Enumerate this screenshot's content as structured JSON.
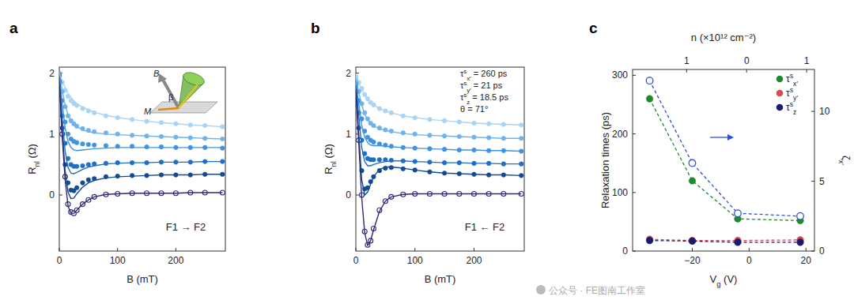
{
  "chart_data": [
    {
      "type": "scatter",
      "panel_label": "a",
      "x_label": "B (mT)",
      "y_label": "Rnl (Ω)",
      "xlim": [
        0,
        285
      ],
      "ylim": [
        -0.92,
        2.1
      ],
      "xticks": [
        0,
        100,
        200
      ],
      "yticks": [
        0,
        1,
        2
      ],
      "annotation": "F1 → F2",
      "inset_labels": [
        "B",
        "β",
        "M"
      ],
      "x": [
        0,
        5,
        10,
        15,
        20,
        25,
        30,
        40,
        50,
        60,
        80,
        100,
        125,
        150,
        175,
        200,
        225,
        250,
        280
      ],
      "series": [
        {
          "color": "#a9d4f5",
          "marker": "circle",
          "values": [
            2.0,
            1.85,
            1.72,
            1.62,
            1.55,
            1.5,
            1.47,
            1.42,
            1.38,
            1.35,
            1.3,
            1.27,
            1.24,
            1.21,
            1.19,
            1.17,
            1.15,
            1.14,
            1.12
          ],
          "fit": [
            2.0,
            1.88,
            1.76,
            1.67,
            1.6,
            1.55,
            1.5,
            1.44,
            1.4,
            1.36,
            1.31,
            1.27,
            1.24,
            1.21,
            1.19,
            1.17,
            1.15,
            1.14,
            1.12
          ]
        },
        {
          "color": "#6fb3ec",
          "marker": "circle",
          "values": [
            2.0,
            1.7,
            1.45,
            1.3,
            1.22,
            1.17,
            1.13,
            1.09,
            1.06,
            1.04,
            1.02,
            1.0,
            0.98,
            0.97,
            0.96,
            0.95,
            0.94,
            0.93,
            0.92
          ],
          "fit": [
            2.0,
            1.72,
            1.48,
            1.32,
            1.22,
            1.16,
            1.12,
            1.07,
            1.04,
            1.02,
            1.0,
            0.99,
            0.98,
            0.97,
            0.96,
            0.95,
            0.94,
            0.93,
            0.92
          ]
        },
        {
          "color": "#3f93e0",
          "marker": "circle",
          "values": [
            1.97,
            1.55,
            1.2,
            1.0,
            0.92,
            0.88,
            0.86,
            0.84,
            0.83,
            0.82,
            0.81,
            0.8,
            0.8,
            0.79,
            0.79,
            0.78,
            0.78,
            0.78,
            0.77
          ],
          "fit": [
            1.97,
            1.5,
            1.1,
            0.88,
            0.78,
            0.74,
            0.73,
            0.74,
            0.75,
            0.76,
            0.77,
            0.78,
            0.78,
            0.78,
            0.78,
            0.78,
            0.78,
            0.78,
            0.78
          ]
        },
        {
          "color": "#1f6fc4",
          "marker": "circle",
          "values": [
            1.95,
            1.3,
            0.85,
            0.6,
            0.5,
            0.47,
            0.47,
            0.48,
            0.5,
            0.51,
            0.52,
            0.53,
            0.53,
            0.53,
            0.54,
            0.54,
            0.54,
            0.55,
            0.55
          ],
          "fit": [
            1.95,
            1.25,
            0.72,
            0.45,
            0.36,
            0.35,
            0.37,
            0.42,
            0.46,
            0.48,
            0.51,
            0.52,
            0.53,
            0.53,
            0.54,
            0.54,
            0.54,
            0.55,
            0.55
          ]
        },
        {
          "color": "#144a94",
          "marker": "circle",
          "values": [
            1.9,
            1.1,
            0.5,
            0.2,
            0.08,
            0.07,
            0.12,
            0.2,
            0.25,
            0.27,
            0.3,
            0.31,
            0.32,
            0.32,
            0.33,
            0.33,
            0.33,
            0.34,
            0.34
          ],
          "fit": [
            1.9,
            1.05,
            0.4,
            0.05,
            -0.06,
            -0.05,
            0.02,
            0.13,
            0.2,
            0.24,
            0.28,
            0.3,
            0.31,
            0.32,
            0.33,
            0.33,
            0.33,
            0.34,
            0.34
          ]
        },
        {
          "color": "#2e2a7a",
          "marker": "open_circle",
          "values": [
            1.85,
            1.0,
            0.3,
            -0.15,
            -0.28,
            -0.3,
            -0.25,
            -0.15,
            -0.08,
            -0.03,
            0.01,
            0.02,
            0.03,
            0.03,
            0.03,
            0.03,
            0.04,
            0.04,
            0.04
          ],
          "fit": [
            1.85,
            0.95,
            0.25,
            -0.18,
            -0.3,
            -0.3,
            -0.25,
            -0.15,
            -0.08,
            -0.03,
            0.01,
            0.02,
            0.03,
            0.03,
            0.03,
            0.03,
            0.04,
            0.04,
            0.04
          ]
        }
      ]
    },
    {
      "type": "scatter",
      "panel_label": "b",
      "x_label": "B (mT)",
      "y_label": "Rnl (Ω)",
      "xlim": [
        0,
        285
      ],
      "ylim": [
        -0.92,
        2.1
      ],
      "xticks": [
        0,
        100,
        200
      ],
      "yticks": [
        0,
        1,
        2
      ],
      "annotation": "F1 ← F2",
      "annotations": [
        "τsx′ = 260 ps",
        "τsy′ = 21 ps",
        "τsz = 18.5 ps",
        "θ = 71°"
      ],
      "x": [
        0,
        5,
        10,
        15,
        20,
        25,
        30,
        40,
        50,
        60,
        80,
        100,
        125,
        150,
        175,
        200,
        225,
        250,
        280
      ],
      "series": [
        {
          "color": "#a9d4f5",
          "marker": "circle",
          "values": [
            1.95,
            1.85,
            1.75,
            1.65,
            1.58,
            1.52,
            1.48,
            1.42,
            1.38,
            1.35,
            1.3,
            1.27,
            1.24,
            1.22,
            1.2,
            1.18,
            1.17,
            1.16,
            1.15
          ],
          "fit": [
            1.95,
            1.84,
            1.73,
            1.64,
            1.57,
            1.52,
            1.48,
            1.42,
            1.38,
            1.35,
            1.3,
            1.27,
            1.24,
            1.22,
            1.2,
            1.18,
            1.17,
            1.16,
            1.15
          ]
        },
        {
          "color": "#6fb3ec",
          "marker": "circle",
          "values": [
            1.9,
            1.7,
            1.5,
            1.35,
            1.25,
            1.18,
            1.14,
            1.1,
            1.07,
            1.05,
            1.02,
            1.0,
            0.98,
            0.97,
            0.96,
            0.95,
            0.94,
            0.93,
            0.93
          ],
          "fit": [
            1.9,
            1.68,
            1.48,
            1.33,
            1.24,
            1.17,
            1.13,
            1.09,
            1.06,
            1.04,
            1.01,
            0.99,
            0.98,
            0.97,
            0.96,
            0.95,
            0.94,
            0.93,
            0.93
          ]
        },
        {
          "color": "#3f93e0",
          "marker": "circle",
          "values": [
            1.85,
            1.55,
            1.25,
            1.05,
            0.95,
            0.9,
            0.87,
            0.84,
            0.82,
            0.8,
            0.78,
            0.77,
            0.76,
            0.75,
            0.74,
            0.74,
            0.73,
            0.73,
            0.72
          ],
          "fit": [
            1.85,
            1.5,
            1.15,
            0.95,
            0.86,
            0.82,
            0.81,
            0.81,
            0.8,
            0.79,
            0.78,
            0.77,
            0.76,
            0.75,
            0.74,
            0.74,
            0.73,
            0.73,
            0.72
          ]
        },
        {
          "color": "#1f6fc4",
          "marker": "circle",
          "values": [
            1.8,
            1.35,
            0.9,
            0.68,
            0.6,
            0.58,
            0.58,
            0.58,
            0.58,
            0.57,
            0.56,
            0.55,
            0.54,
            0.53,
            0.53,
            0.52,
            0.52,
            0.51,
            0.51
          ],
          "fit": [
            1.8,
            1.3,
            0.78,
            0.55,
            0.48,
            0.48,
            0.5,
            0.53,
            0.55,
            0.56,
            0.56,
            0.55,
            0.54,
            0.53,
            0.53,
            0.52,
            0.52,
            0.51,
            0.51
          ]
        },
        {
          "color": "#144a94",
          "marker": "circle",
          "values": [
            1.75,
            1.1,
            0.4,
            0.1,
            0.12,
            0.22,
            0.3,
            0.4,
            0.44,
            0.45,
            0.43,
            0.41,
            0.38,
            0.36,
            0.35,
            0.34,
            0.33,
            0.33,
            0.32
          ],
          "fit": [
            1.75,
            1.0,
            0.25,
            0.0,
            0.05,
            0.18,
            0.3,
            0.42,
            0.46,
            0.46,
            0.44,
            0.41,
            0.38,
            0.36,
            0.35,
            0.34,
            0.33,
            0.33,
            0.32
          ]
        },
        {
          "color": "#2e2a7a",
          "marker": "open_circle",
          "values": [
            1.7,
            0.9,
            0.0,
            -0.6,
            -0.82,
            -0.75,
            -0.55,
            -0.25,
            -0.1,
            -0.03,
            0.01,
            0.02,
            0.02,
            0.02,
            0.02,
            0.02,
            0.02,
            0.02,
            0.02
          ],
          "fit": [
            1.7,
            0.85,
            -0.05,
            -0.62,
            -0.83,
            -0.75,
            -0.57,
            -0.27,
            -0.1,
            -0.03,
            0.01,
            0.02,
            0.02,
            0.02,
            0.02,
            0.02,
            0.02,
            0.02,
            0.02
          ]
        }
      ]
    },
    {
      "type": "line",
      "panel_label": "c",
      "x_label": "Vg (V)",
      "y_label": "Relaxation times (ps)",
      "y2_label": "ζx′",
      "x2_label": "n (×10¹² cm⁻²)",
      "xlim": [
        -41,
        23
      ],
      "xticks": [
        {
          "value": -20,
          "label": "−20"
        },
        0,
        20
      ],
      "x2lim": [
        -1.9,
        1.13
      ],
      "x2ticks": [
        {
          "value": -1,
          "label": "1"
        },
        0,
        1
      ],
      "ylim": [
        0,
        310
      ],
      "yticks": [
        0,
        100,
        200,
        300
      ],
      "y2lim": [
        0,
        13
      ],
      "y2ticks": [
        0,
        5,
        10
      ],
      "legend": "upper right",
      "x": [
        -35,
        -20,
        -4,
        18
      ],
      "series": [
        {
          "name": "τsx′",
          "color": "#1e8a2e",
          "marker": "circle",
          "line_style": "dashed",
          "values": [
            260,
            120,
            55,
            52
          ]
        },
        {
          "name": "τsy′",
          "color": "#e0474c",
          "marker": "circle",
          "line_style": "dashed",
          "values": [
            20,
            18,
            18,
            19
          ]
        },
        {
          "name": "τsz",
          "color": "#1a1a6e",
          "marker": "circle",
          "line_style": "dashed",
          "values": [
            18,
            17,
            15,
            15
          ]
        },
        {
          "axis": "y2",
          "color": "#2b4fe0",
          "marker": "open_circle",
          "line_style": "dashed",
          "values": [
            12.2,
            6.3,
            2.7,
            2.5
          ]
        }
      ]
    }
  ],
  "watermark": "公众号 · FE图南工作室"
}
